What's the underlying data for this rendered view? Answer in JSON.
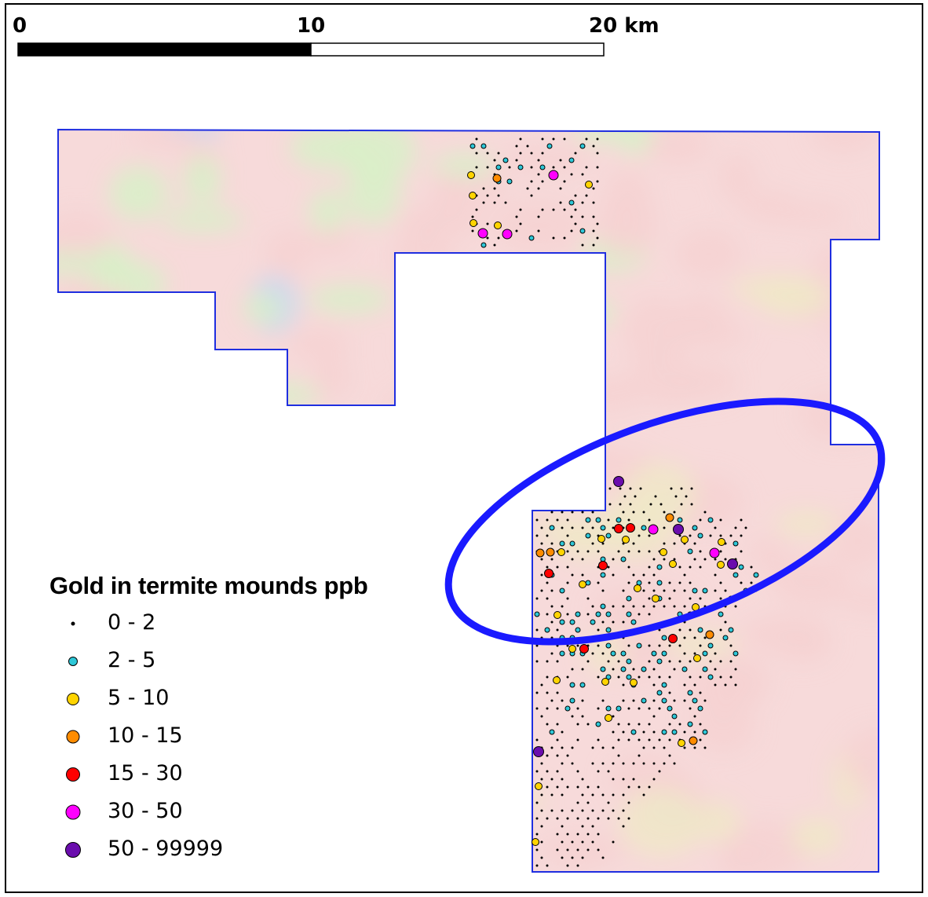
{
  "scale_bar": {
    "labels": [
      "0",
      "10",
      "20 km"
    ],
    "fill_colors": [
      "#000000",
      "#ffffff"
    ]
  },
  "legend": {
    "title": "Gold in termite mounds ppb",
    "classes": [
      {
        "label": "0 - 2",
        "color": "#000000",
        "symbol": "dot"
      },
      {
        "label": "2 - 5",
        "color": "#2ec8d8",
        "symbol": "circle"
      },
      {
        "label": "5 - 10",
        "color": "#ffd400",
        "symbol": "circle"
      },
      {
        "label": "10 - 15",
        "color": "#ff8c00",
        "symbol": "circle"
      },
      {
        "label": "15 - 30",
        "color": "#ff0000",
        "symbol": "circle"
      },
      {
        "label": "30 - 50",
        "color": "#ff00ff",
        "symbol": "circle"
      },
      {
        "label": "50 - 99999",
        "color": "#6a0dad",
        "symbol": "circle"
      }
    ]
  },
  "map": {
    "tenement_outline_color": "#1f2ee0",
    "highlight_ellipse_color": "#1a1aff",
    "background_raster_colors": [
      "#f6d2d2",
      "#d8f0c8",
      "#c8d8f0",
      "#f0e8c8"
    ]
  }
}
